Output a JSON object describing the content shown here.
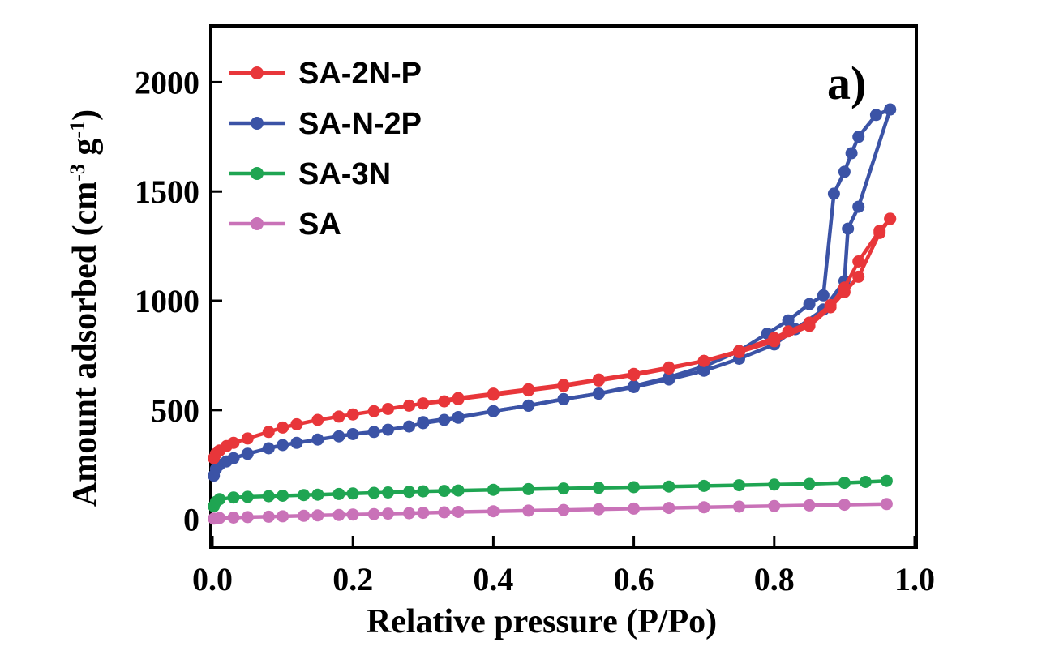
{
  "chart_data": {
    "type": "line",
    "panel_label": "a)",
    "xlabel": "Relative pressure (P/Po)",
    "ylabel_main": "Amount adsorbed (cm",
    "ylabel_sup1": "-3",
    "ylabel_mid": " g",
    "ylabel_sup2": "-1",
    "ylabel_end": ")",
    "xlim": [
      0.0,
      1.0
    ],
    "ylim": [
      -120,
      2250
    ],
    "xticks": [
      "0.0",
      "0.2",
      "0.4",
      "0.6",
      "0.8",
      "1.0"
    ],
    "xtick_values": [
      0.0,
      0.2,
      0.4,
      0.6,
      0.8,
      1.0
    ],
    "yticks": [
      "0",
      "500",
      "1000",
      "1500",
      "2000"
    ],
    "ytick_values": [
      0,
      500,
      1000,
      1500,
      2000
    ],
    "legend_position": "top-left",
    "grid": false,
    "series": [
      {
        "name": "SA-2N-P",
        "color": "#e8363a",
        "adsorption": [
          [
            0.002,
            280
          ],
          [
            0.005,
            300
          ],
          [
            0.01,
            315
          ],
          [
            0.02,
            335
          ],
          [
            0.03,
            350
          ],
          [
            0.05,
            370
          ],
          [
            0.08,
            400
          ],
          [
            0.1,
            420
          ],
          [
            0.12,
            435
          ],
          [
            0.15,
            455
          ],
          [
            0.18,
            470
          ],
          [
            0.2,
            480
          ],
          [
            0.23,
            495
          ],
          [
            0.25,
            505
          ],
          [
            0.28,
            520
          ],
          [
            0.3,
            530
          ],
          [
            0.33,
            540
          ],
          [
            0.35,
            550
          ],
          [
            0.4,
            570
          ],
          [
            0.45,
            590
          ],
          [
            0.5,
            610
          ],
          [
            0.55,
            635
          ],
          [
            0.6,
            660
          ],
          [
            0.65,
            690
          ],
          [
            0.7,
            725
          ],
          [
            0.75,
            765
          ],
          [
            0.8,
            815
          ],
          [
            0.85,
            885
          ],
          [
            0.88,
            970
          ],
          [
            0.9,
            1040
          ],
          [
            0.92,
            1110
          ],
          [
            0.95,
            1310
          ],
          [
            0.965,
            1375
          ]
        ],
        "desorption": [
          [
            0.965,
            1375
          ],
          [
            0.95,
            1320
          ],
          [
            0.92,
            1180
          ],
          [
            0.9,
            1060
          ],
          [
            0.88,
            980
          ],
          [
            0.85,
            900
          ],
          [
            0.82,
            860
          ],
          [
            0.8,
            830
          ],
          [
            0.75,
            770
          ],
          [
            0.7,
            725
          ],
          [
            0.65,
            695
          ],
          [
            0.6,
            665
          ],
          [
            0.55,
            640
          ],
          [
            0.5,
            615
          ],
          [
            0.45,
            595
          ],
          [
            0.4,
            575
          ],
          [
            0.35,
            555
          ],
          [
            0.3,
            530
          ]
        ]
      },
      {
        "name": "SA-N-2P",
        "color": "#3b53a6",
        "adsorption": [
          [
            0.002,
            200
          ],
          [
            0.005,
            230
          ],
          [
            0.01,
            250
          ],
          [
            0.02,
            265
          ],
          [
            0.03,
            280
          ],
          [
            0.05,
            300
          ],
          [
            0.08,
            325
          ],
          [
            0.1,
            340
          ],
          [
            0.12,
            350
          ],
          [
            0.15,
            365
          ],
          [
            0.18,
            380
          ],
          [
            0.2,
            390
          ],
          [
            0.23,
            400
          ],
          [
            0.25,
            410
          ],
          [
            0.28,
            425
          ],
          [
            0.3,
            440
          ],
          [
            0.33,
            455
          ],
          [
            0.35,
            465
          ],
          [
            0.4,
            495
          ],
          [
            0.45,
            520
          ],
          [
            0.5,
            550
          ],
          [
            0.55,
            575
          ],
          [
            0.6,
            605
          ],
          [
            0.65,
            640
          ],
          [
            0.7,
            680
          ],
          [
            0.75,
            735
          ],
          [
            0.8,
            800
          ],
          [
            0.83,
            870
          ],
          [
            0.87,
            960
          ],
          [
            0.9,
            1090
          ],
          [
            0.905,
            1330
          ],
          [
            0.92,
            1430
          ],
          [
            0.965,
            1875
          ]
        ],
        "desorption": [
          [
            0.965,
            1875
          ],
          [
            0.945,
            1850
          ],
          [
            0.92,
            1750
          ],
          [
            0.91,
            1675
          ],
          [
            0.9,
            1590
          ],
          [
            0.885,
            1490
          ],
          [
            0.87,
            1025
          ],
          [
            0.85,
            985
          ],
          [
            0.82,
            910
          ],
          [
            0.79,
            850
          ],
          [
            0.75,
            770
          ],
          [
            0.7,
            700
          ],
          [
            0.65,
            650
          ],
          [
            0.6,
            610
          ],
          [
            0.55,
            575
          ],
          [
            0.5,
            550
          ],
          [
            0.45,
            520
          ],
          [
            0.4,
            495
          ],
          [
            0.35,
            468
          ],
          [
            0.3,
            445
          ]
        ]
      },
      {
        "name": "SA-3N",
        "color": "#1fa552",
        "adsorption": [
          [
            0.002,
            60
          ],
          [
            0.005,
            80
          ],
          [
            0.01,
            92
          ],
          [
            0.03,
            100
          ],
          [
            0.05,
            103
          ],
          [
            0.08,
            106
          ],
          [
            0.1,
            108
          ],
          [
            0.13,
            111
          ],
          [
            0.15,
            113
          ],
          [
            0.18,
            116
          ],
          [
            0.2,
            118
          ],
          [
            0.23,
            121
          ],
          [
            0.25,
            123
          ],
          [
            0.28,
            126
          ],
          [
            0.3,
            128
          ],
          [
            0.33,
            130
          ],
          [
            0.35,
            132
          ],
          [
            0.4,
            135
          ],
          [
            0.45,
            138
          ],
          [
            0.5,
            141
          ],
          [
            0.55,
            144
          ],
          [
            0.6,
            147
          ],
          [
            0.65,
            150
          ],
          [
            0.7,
            153
          ],
          [
            0.75,
            156
          ],
          [
            0.8,
            159
          ],
          [
            0.85,
            162
          ],
          [
            0.9,
            167
          ],
          [
            0.93,
            171
          ],
          [
            0.96,
            176
          ]
        ],
        "desorption": []
      },
      {
        "name": "SA",
        "color": "#c972b8",
        "adsorption": [
          [
            0.002,
            3
          ],
          [
            0.01,
            6
          ],
          [
            0.03,
            8
          ],
          [
            0.05,
            10
          ],
          [
            0.08,
            12
          ],
          [
            0.1,
            14
          ],
          [
            0.13,
            16
          ],
          [
            0.15,
            18
          ],
          [
            0.18,
            20
          ],
          [
            0.2,
            22
          ],
          [
            0.23,
            24
          ],
          [
            0.25,
            26
          ],
          [
            0.28,
            28
          ],
          [
            0.3,
            30
          ],
          [
            0.33,
            32
          ],
          [
            0.35,
            34
          ],
          [
            0.4,
            37
          ],
          [
            0.45,
            40
          ],
          [
            0.5,
            43
          ],
          [
            0.55,
            46
          ],
          [
            0.6,
            49
          ],
          [
            0.65,
            52
          ],
          [
            0.7,
            55
          ],
          [
            0.75,
            58
          ],
          [
            0.8,
            61
          ],
          [
            0.85,
            64
          ],
          [
            0.9,
            67
          ],
          [
            0.96,
            70
          ]
        ],
        "desorption": []
      }
    ]
  }
}
